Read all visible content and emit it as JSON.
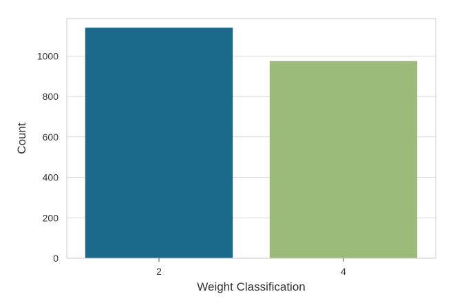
{
  "chart_data": {
    "type": "bar",
    "title": "",
    "xlabel": "Weight Classification",
    "ylabel": "Count",
    "categories": [
      "2",
      "4"
    ],
    "values": [
      1140,
      975
    ],
    "colors": [
      "#1b6a8c",
      "#9bbb7b"
    ],
    "ylim": [
      0,
      1185
    ],
    "yticks": [
      0,
      200,
      400,
      600,
      800,
      1000
    ],
    "ytick_labels": [
      "0",
      "200",
      "400",
      "600",
      "800",
      "1000"
    ],
    "grid": true,
    "legend": "none"
  }
}
